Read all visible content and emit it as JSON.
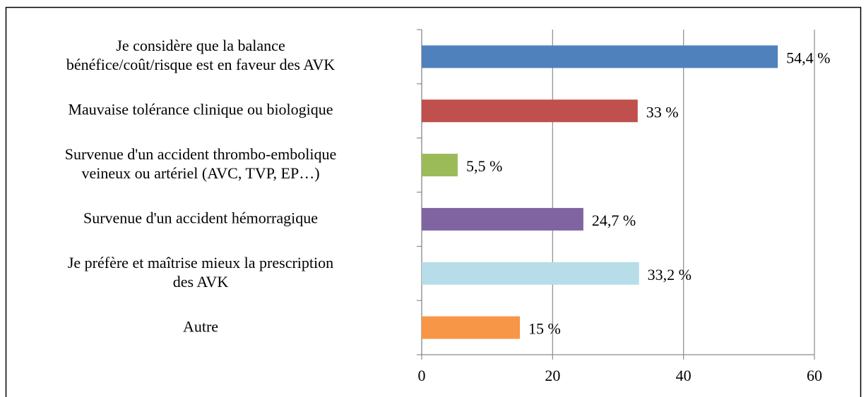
{
  "chart_data": {
    "type": "barh",
    "categories": [
      "Je considère que la balance\nbénéfice/coût/risque est en faveur des AVK",
      "Mauvaise tolérance clinique ou biologique",
      "Survenue d'un accident thrombo-embolique\nveineux ou artériel (AVC, TVP, EP…)",
      "Survenue d'un accident hémorragique",
      "Je préfère et maîtrise mieux la prescription\ndes AVK",
      "Autre"
    ],
    "values": [
      54.4,
      33,
      5.5,
      24.7,
      33.2,
      15
    ],
    "value_labels": [
      "54,4 %",
      "33 %",
      "5,5 %",
      "24,7 %",
      "33,2 %",
      "15 %"
    ],
    "colors": [
      "#4f81bd",
      "#c0504d",
      "#9bbb59",
      "#8064a2",
      "#b7dde8",
      "#f79646"
    ],
    "xlim": [
      0,
      60
    ],
    "xticks": [
      0,
      20,
      40,
      60
    ],
    "grid": true
  }
}
